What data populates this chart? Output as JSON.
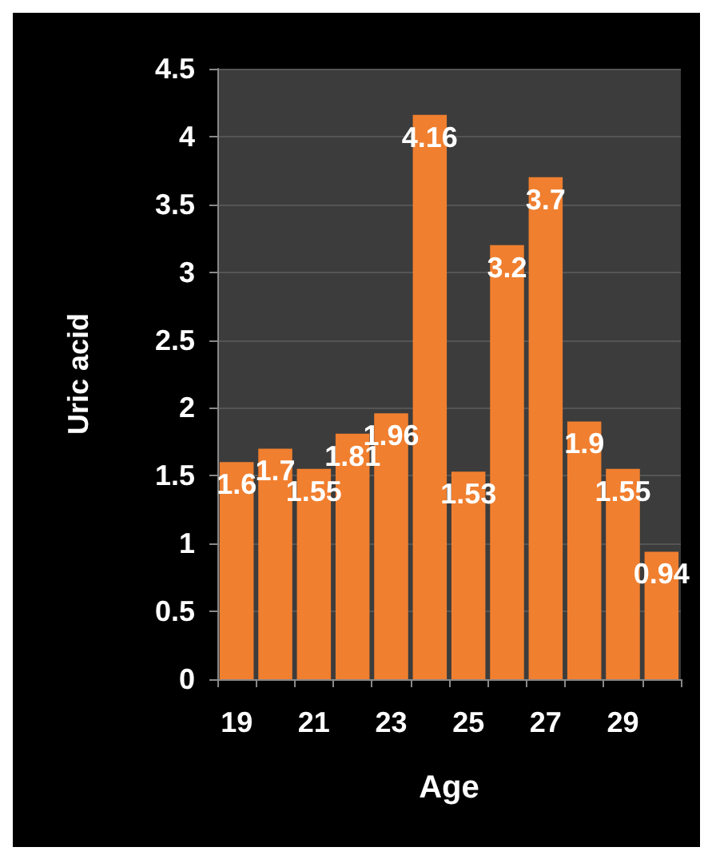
{
  "chart_data": {
    "type": "bar",
    "xlabel": "Age",
    "ylabel": "Uric acid",
    "categories": [
      "19",
      null,
      "21",
      null,
      "23",
      null,
      "25",
      null,
      "27",
      null,
      "29",
      null
    ],
    "values": [
      1.6,
      1.7,
      1.55,
      1.81,
      1.96,
      4.16,
      1.53,
      3.2,
      3.7,
      1.9,
      1.55,
      0.94
    ],
    "color": "#f07f2f",
    "ylim": [
      0,
      4.5
    ],
    "yticks": [
      0,
      0.5,
      1,
      1.5,
      2,
      2.5,
      3,
      3.5,
      4,
      4.5
    ],
    "grid": "y",
    "data_labels": true
  }
}
